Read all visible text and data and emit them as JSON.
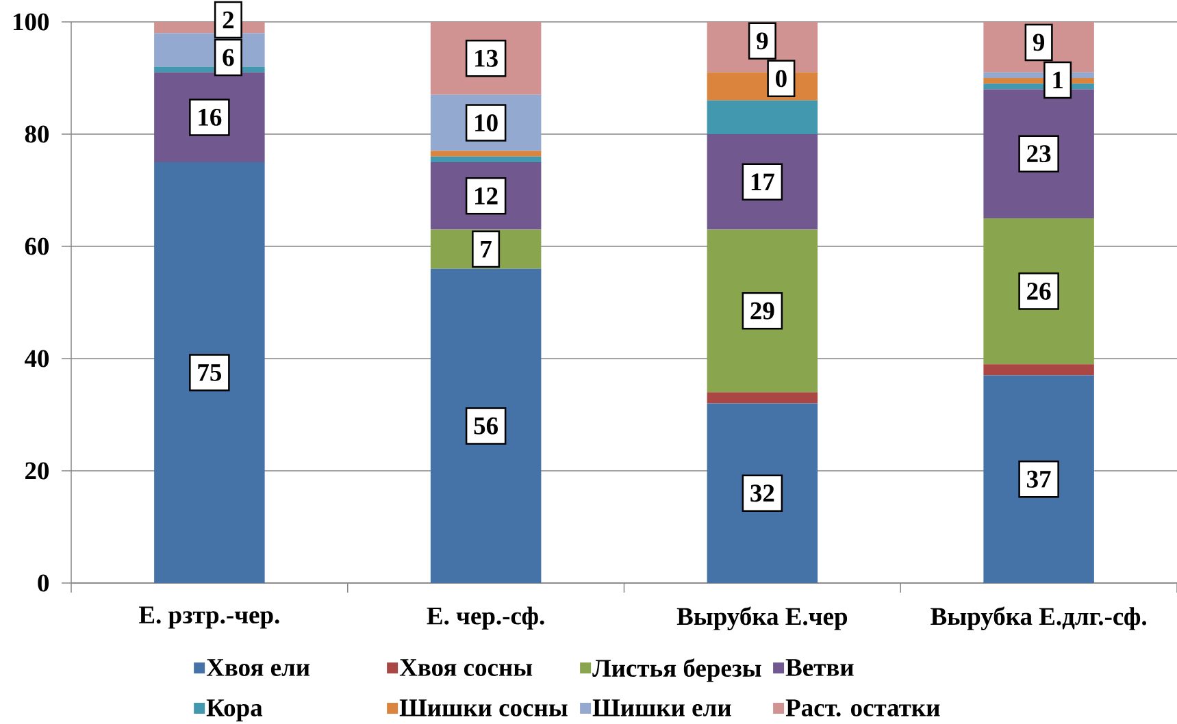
{
  "chart_data": {
    "type": "bar",
    "stacked": true,
    "categories": [
      "Е. рзтр.-чер.",
      "Е. чер.-сф.",
      "Вырубка Е.чер",
      "Вырубка Е.длг.-сф."
    ],
    "series": [
      {
        "name": "Хвоя ели",
        "color": "#4572a7",
        "values": [
          75,
          56,
          32,
          37
        ],
        "value_labels": [
          "75",
          "56",
          "32",
          "37"
        ]
      },
      {
        "name": "Хвоя сосны",
        "color": "#aa4643",
        "values": [
          0,
          0,
          2,
          2
        ]
      },
      {
        "name": "Листья березы",
        "color": "#89a54e",
        "values": [
          0,
          7,
          29,
          26
        ],
        "value_labels": [
          null,
          "7",
          "29",
          "26"
        ]
      },
      {
        "name": "Ветви",
        "color": "#71588f",
        "values": [
          16,
          12,
          17,
          23
        ],
        "value_labels": [
          "16",
          "12",
          "17",
          "23"
        ]
      },
      {
        "name": "Кора",
        "color": "#4198af",
        "values": [
          1,
          1,
          6,
          1
        ]
      },
      {
        "name": "Шишки сосны",
        "color": "#db843d",
        "values": [
          0,
          1,
          5,
          1
        ]
      },
      {
        "name": "Шишки ели",
        "color": "#93a9cf",
        "values": [
          6,
          10,
          0,
          1
        ],
        "value_labels": [
          "6",
          "10",
          "0",
          "1"
        ]
      },
      {
        "name": "Раст. остатки",
        "color": "#d19392",
        "values": [
          2,
          13,
          9,
          9
        ],
        "value_labels": [
          "2",
          "13",
          "9",
          "9"
        ]
      }
    ],
    "ylim": [
      0,
      100
    ],
    "yticks": [
      0,
      20,
      40,
      60,
      80,
      100
    ],
    "grid": "y",
    "legend": "bottom"
  }
}
